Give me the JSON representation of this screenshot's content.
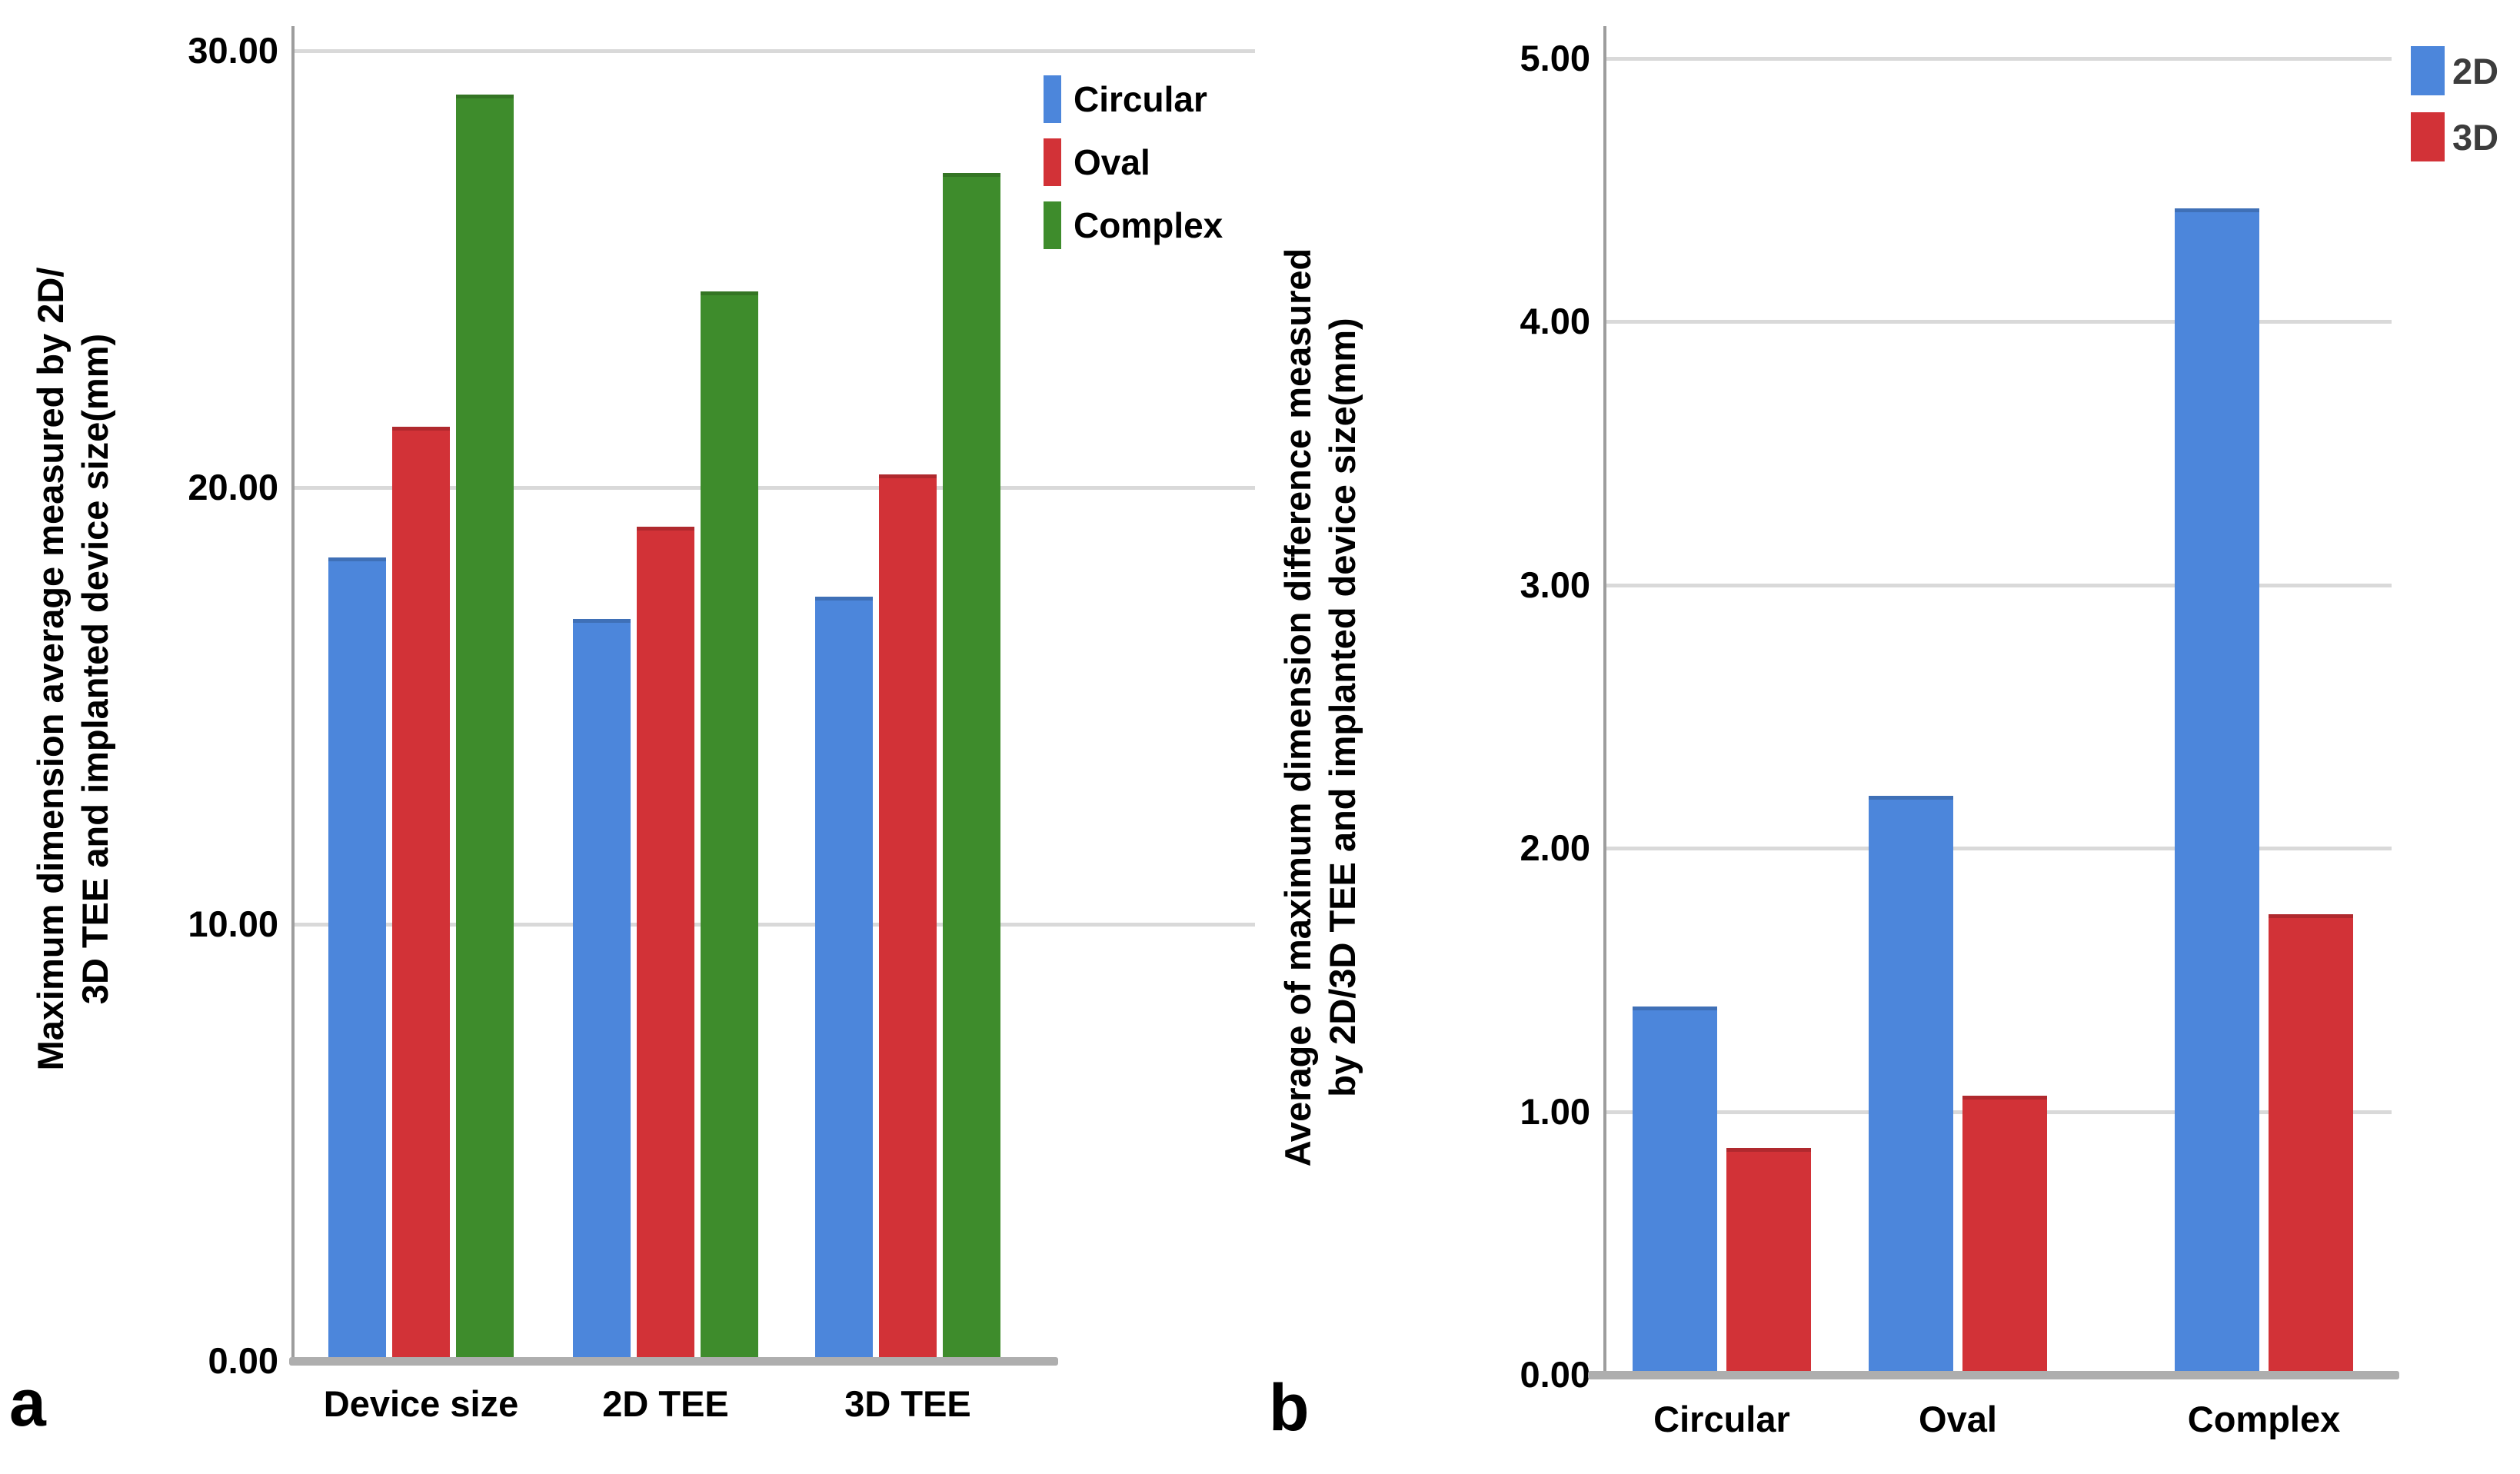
{
  "figure": {
    "background": "#ffffff"
  },
  "colors": {
    "bar_blue": "#4c86db",
    "bar_red": "#d23237",
    "bar_green": "#3e8c2c",
    "gridline": "#d9d9d9",
    "baseline": "#aeaeae",
    "axis_line": "#9d9d9d",
    "text": "#000000",
    "legend_text_b": "#3c3c3c"
  },
  "chart_data": [
    {
      "id": "a",
      "panel_letter": "a",
      "type": "bar",
      "title": "",
      "ylabel_lines": [
        "Maximum dimension average measured by 2D/",
        "3D TEE and implanted device size(mm)"
      ],
      "xlabel": "",
      "categories": [
        "Device size",
        "2D TEE",
        "3D TEE"
      ],
      "series": [
        {
          "name": "Circular",
          "color": "#4c86db",
          "values": [
            18.4,
            17.0,
            17.5
          ]
        },
        {
          "name": "Oval",
          "color": "#d23237",
          "values": [
            21.4,
            19.1,
            20.3
          ]
        },
        {
          "name": "Complex",
          "color": "#3e8c2c",
          "values": [
            29.0,
            24.5,
            27.2
          ]
        }
      ],
      "yticks": [
        {
          "value": 0,
          "label": "0.00"
        },
        {
          "value": 10,
          "label": "10.00"
        },
        {
          "value": 20,
          "label": "20.00"
        },
        {
          "value": 30,
          "label": "30.00"
        }
      ],
      "ylim": [
        0,
        30.5
      ],
      "grid": true,
      "legend_position": "top-right"
    },
    {
      "id": "b",
      "panel_letter": "b",
      "type": "bar",
      "title": "",
      "ylabel_lines": [
        "Average of maximum dimension difference measured",
        "by 2D/3D TEE and implanted device size(mm)"
      ],
      "xlabel": "",
      "categories": [
        "Circular",
        "Oval",
        "Complex"
      ],
      "series": [
        {
          "name": "2D",
          "color": "#4c86db",
          "values": [
            1.4,
            2.2,
            4.43
          ]
        },
        {
          "name": "3D",
          "color": "#d23237",
          "values": [
            0.86,
            1.06,
            1.75
          ]
        }
      ],
      "yticks": [
        {
          "value": 0,
          "label": "0.00"
        },
        {
          "value": 1,
          "label": "1.00"
        },
        {
          "value": 2,
          "label": "2.00"
        },
        {
          "value": 3,
          "label": "3.00"
        },
        {
          "value": 4,
          "label": "4.00"
        },
        {
          "value": 5,
          "label": "5.00"
        }
      ],
      "ylim": [
        0,
        5.11
      ],
      "grid": true,
      "legend_position": "top-right"
    }
  ]
}
